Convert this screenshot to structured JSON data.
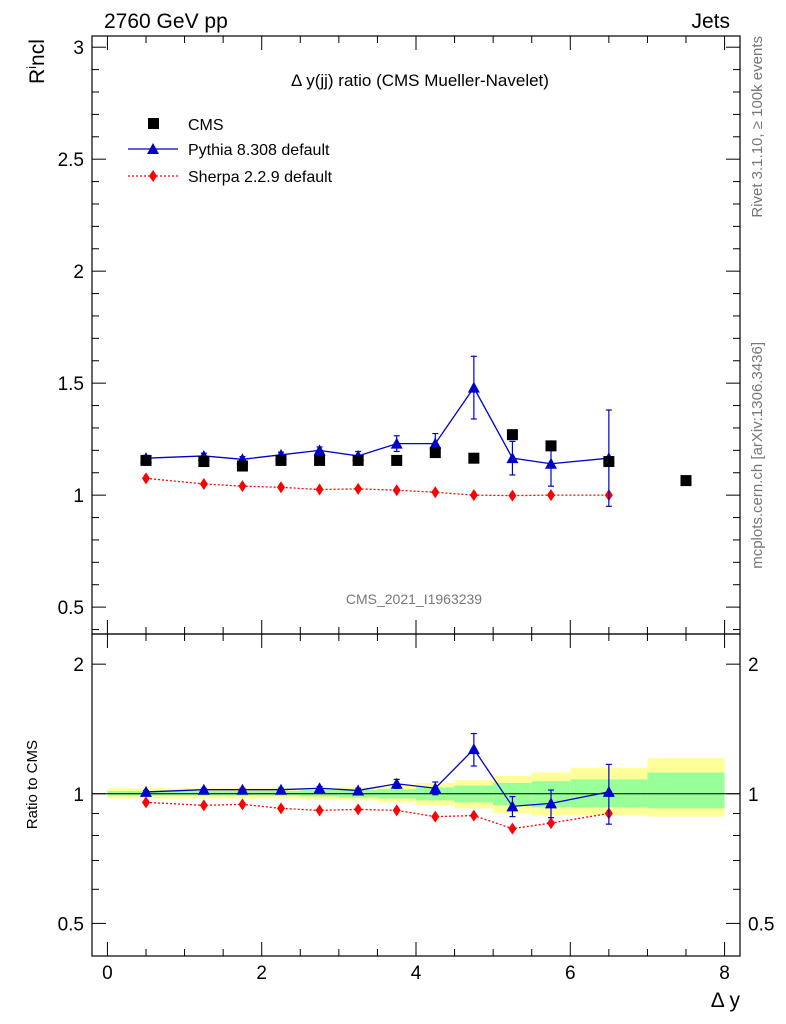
{
  "header": {
    "left": "2760 GeV pp",
    "right": "Jets"
  },
  "side_labels": {
    "top": "Rivet 3.1.10, ≥ 100k events",
    "bottom": "mcplots.cern.ch [arXiv:1306.3436]"
  },
  "watermark": "CMS_2021_I1963239",
  "colors": {
    "cms": "#000000",
    "pythia": "#0000cc",
    "sherpa": "#ff0000",
    "band_outer": "#ffff99",
    "band_inner": "#99ff99"
  },
  "chart_data": [
    {
      "type": "scatter",
      "panel": "main",
      "title": "Δ y(jj) ratio (CMS Mueller-Navelet)",
      "ylabel": "R^incl",
      "ylim": [
        0.38,
        3.05
      ],
      "yticks": [
        0.5,
        1,
        1.5,
        2,
        2.5,
        3
      ],
      "ytick_labels": [
        "0.5",
        "1",
        "1.5",
        "2",
        "2.5",
        "3"
      ],
      "xlim": [
        -0.2,
        8.2
      ],
      "legend_position": "top-left",
      "series": [
        {
          "name": "CMS",
          "marker": "square",
          "x": [
            0.5,
            1.25,
            1.75,
            2.25,
            2.75,
            3.25,
            3.75,
            4.25,
            4.75,
            5.25,
            5.75,
            6.5,
            7.5
          ],
          "y": [
            1.155,
            1.15,
            1.13,
            1.155,
            1.155,
            1.155,
            1.155,
            1.19,
            1.165,
            1.27,
            1.22,
            1.15,
            1.065
          ]
        },
        {
          "name": "Pythia 8.308 default",
          "marker": "triangle",
          "line": "solid",
          "x": [
            0.5,
            1.25,
            1.75,
            2.25,
            2.75,
            3.25,
            3.75,
            4.25,
            4.75,
            5.25,
            5.75,
            6.5
          ],
          "y": [
            1.165,
            1.175,
            1.16,
            1.18,
            1.2,
            1.175,
            1.23,
            1.23,
            1.48,
            1.165,
            1.14,
            1.165
          ],
          "yerr": [
            0.012,
            0.012,
            0.012,
            0.012,
            0.015,
            0.02,
            0.035,
            0.045,
            0.14,
            0.075,
            0.1,
            0.215
          ]
        },
        {
          "name": "Sherpa 2.2.9 default",
          "marker": "diamond",
          "line": "dotted",
          "x": [
            0.5,
            1.25,
            1.75,
            2.25,
            2.75,
            3.25,
            3.75,
            4.25,
            4.75,
            5.25,
            5.75,
            6.5
          ],
          "y": [
            1.075,
            1.05,
            1.04,
            1.035,
            1.025,
            1.028,
            1.022,
            1.013,
            1.0,
            0.998,
            1.0,
            1.0
          ]
        }
      ]
    },
    {
      "type": "scatter",
      "panel": "ratio",
      "ylabel": "Ratio to CMS",
      "xlabel": "Δ y",
      "ylog": true,
      "ylim": [
        0.42,
        2.35
      ],
      "yticks": [
        0.5,
        1,
        2
      ],
      "ytick_labels": [
        "0.5",
        "1",
        "2"
      ],
      "xlim": [
        -0.2,
        8.2
      ],
      "xticks": [
        0,
        2,
        4,
        6,
        8
      ],
      "xtick_labels": [
        "0",
        "2",
        "4",
        "6",
        "8"
      ],
      "bands": {
        "edges": [
          0,
          1,
          1.5,
          2,
          2.5,
          3,
          3.5,
          4,
          4.5,
          5,
          5.5,
          6,
          7,
          8
        ],
        "outer_low": [
          0.975,
          0.975,
          0.975,
          0.975,
          0.97,
          0.965,
          0.955,
          0.94,
          0.925,
          0.9,
          0.89,
          0.89,
          0.885
        ],
        "outer_high": [
          1.03,
          1.03,
          1.03,
          1.03,
          1.03,
          1.035,
          1.045,
          1.06,
          1.075,
          1.1,
          1.12,
          1.15,
          1.21
        ],
        "inner_low": [
          0.99,
          0.99,
          0.99,
          0.99,
          0.985,
          0.98,
          0.975,
          0.965,
          0.955,
          0.94,
          0.93,
          0.93,
          0.925
        ],
        "inner_high": [
          1.015,
          1.015,
          1.015,
          1.015,
          1.02,
          1.02,
          1.025,
          1.035,
          1.045,
          1.06,
          1.07,
          1.08,
          1.12
        ]
      },
      "series": [
        {
          "name": "Pythia 8.308 default",
          "x": [
            0.5,
            1.25,
            1.75,
            2.25,
            2.75,
            3.25,
            3.75,
            4.25,
            4.75,
            5.25,
            5.75,
            6.5
          ],
          "y": [
            1.01,
            1.022,
            1.022,
            1.022,
            1.03,
            1.018,
            1.055,
            1.03,
            1.27,
            0.935,
            0.95,
            1.01
          ],
          "yerr": [
            0.008,
            0.008,
            0.008,
            0.008,
            0.01,
            0.012,
            0.025,
            0.035,
            0.11,
            0.05,
            0.07,
            0.16
          ]
        },
        {
          "name": "Sherpa 2.2.9 default",
          "x": [
            0.5,
            1.25,
            1.75,
            2.25,
            2.75,
            3.25,
            3.75,
            4.25,
            4.75,
            5.25,
            5.75,
            6.5
          ],
          "y": [
            0.955,
            0.94,
            0.945,
            0.925,
            0.915,
            0.92,
            0.915,
            0.885,
            0.89,
            0.83,
            0.855,
            0.9
          ]
        }
      ]
    }
  ]
}
